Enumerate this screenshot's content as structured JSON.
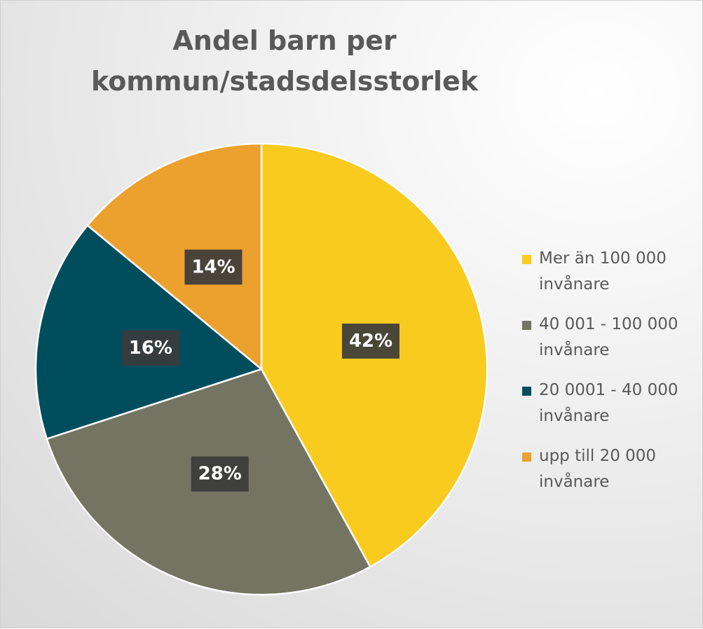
{
  "chart_data": {
    "type": "pie",
    "title": "Andel barn per kommun/stadsdelsstorlek",
    "categories": [
      "Mer än 100 000 invånare",
      "40 001 - 100 000 invånare",
      "20 0001 - 40 000 invånare",
      "upp till 20 000 invånare"
    ],
    "values": [
      42,
      28,
      16,
      14
    ],
    "value_labels": [
      "42%",
      "28%",
      "16%",
      "14%"
    ],
    "colors": [
      "#F9CB1F",
      "#737462",
      "#004D5E",
      "#ECA02E"
    ],
    "legend": "right"
  }
}
